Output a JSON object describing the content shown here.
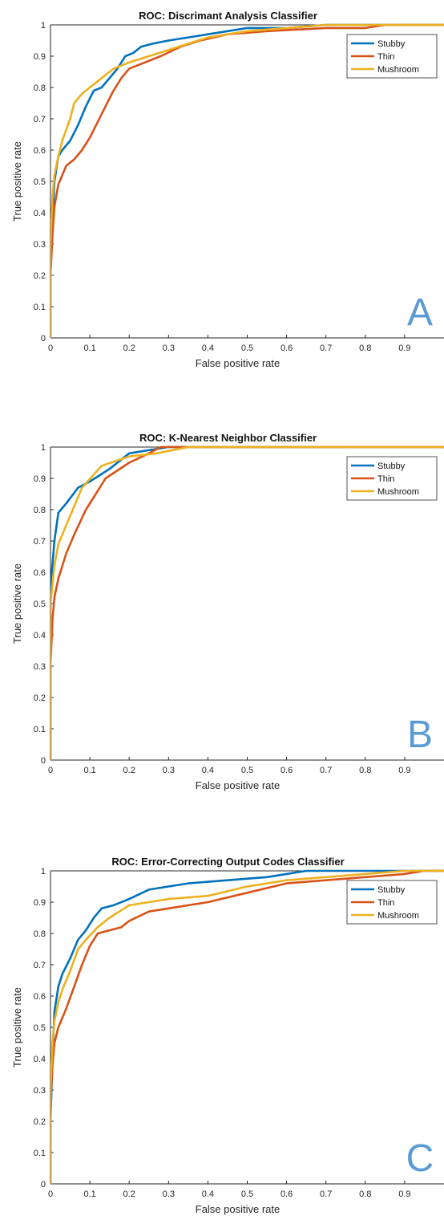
{
  "chart_data": [
    {
      "type": "line",
      "title": "ROC: Discrimant Analysis Classifier",
      "xlabel": "False positive rate",
      "ylabel": "True positive rate",
      "xlim": [
        0,
        1
      ],
      "ylim": [
        0,
        1
      ],
      "xticks": [
        "0",
        "0.1",
        "0.2",
        "0.3",
        "0.4",
        "0.5",
        "0.6",
        "0.7",
        "0.8",
        "0.9"
      ],
      "yticks": [
        "0",
        "0.1",
        "0.2",
        "0.3",
        "0.4",
        "0.5",
        "0.6",
        "0.7",
        "0.8",
        "0.9",
        "1"
      ],
      "legend_position": "top-right",
      "panel_letter": "A",
      "series": [
        {
          "name": "Stubby",
          "color": "#0072BD",
          "points": [
            [
              0,
              0
            ],
            [
              0,
              0.25
            ],
            [
              0.005,
              0.38
            ],
            [
              0.01,
              0.5
            ],
            [
              0.02,
              0.58
            ],
            [
              0.03,
              0.6
            ],
            [
              0.05,
              0.63
            ],
            [
              0.07,
              0.68
            ],
            [
              0.09,
              0.74
            ],
            [
              0.11,
              0.79
            ],
            [
              0.13,
              0.8
            ],
            [
              0.15,
              0.83
            ],
            [
              0.17,
              0.86
            ],
            [
              0.19,
              0.9
            ],
            [
              0.21,
              0.91
            ],
            [
              0.23,
              0.93
            ],
            [
              0.26,
              0.94
            ],
            [
              0.3,
              0.95
            ],
            [
              0.35,
              0.96
            ],
            [
              0.4,
              0.97
            ],
            [
              0.45,
              0.98
            ],
            [
              0.5,
              0.99
            ],
            [
              0.6,
              0.99
            ],
            [
              0.7,
              1
            ],
            [
              1,
              1
            ]
          ]
        },
        {
          "name": "Thin",
          "color": "#D95319",
          "points": [
            [
              0,
              0
            ],
            [
              0,
              0.2
            ],
            [
              0.005,
              0.33
            ],
            [
              0.01,
              0.42
            ],
            [
              0.02,
              0.49
            ],
            [
              0.03,
              0.52
            ],
            [
              0.04,
              0.55
            ],
            [
              0.06,
              0.57
            ],
            [
              0.08,
              0.6
            ],
            [
              0.1,
              0.64
            ],
            [
              0.12,
              0.69
            ],
            [
              0.14,
              0.74
            ],
            [
              0.16,
              0.79
            ],
            [
              0.18,
              0.83
            ],
            [
              0.2,
              0.86
            ],
            [
              0.24,
              0.88
            ],
            [
              0.28,
              0.9
            ],
            [
              0.33,
              0.93
            ],
            [
              0.38,
              0.95
            ],
            [
              0.45,
              0.97
            ],
            [
              0.55,
              0.98
            ],
            [
              0.7,
              0.99
            ],
            [
              0.8,
              0.99
            ],
            [
              0.85,
              1
            ],
            [
              1,
              1
            ]
          ]
        },
        {
          "name": "Mushroom",
          "color": "#EDB120",
          "points": [
            [
              0,
              0
            ],
            [
              0,
              0.3
            ],
            [
              0.005,
              0.45
            ],
            [
              0.01,
              0.52
            ],
            [
              0.02,
              0.58
            ],
            [
              0.03,
              0.63
            ],
            [
              0.05,
              0.7
            ],
            [
              0.06,
              0.75
            ],
            [
              0.08,
              0.78
            ],
            [
              0.1,
              0.8
            ],
            [
              0.13,
              0.83
            ],
            [
              0.16,
              0.86
            ],
            [
              0.2,
              0.88
            ],
            [
              0.25,
              0.9
            ],
            [
              0.3,
              0.92
            ],
            [
              0.35,
              0.94
            ],
            [
              0.4,
              0.96
            ],
            [
              0.45,
              0.97
            ],
            [
              0.5,
              0.98
            ],
            [
              0.6,
              0.99
            ],
            [
              0.7,
              1
            ],
            [
              1,
              1
            ]
          ]
        }
      ]
    },
    {
      "type": "line",
      "title": "ROC: K-Nearest Neighbor Classifier",
      "xlabel": "False positive rate",
      "ylabel": "True positive rate",
      "xlim": [
        0,
        1
      ],
      "ylim": [
        0,
        1
      ],
      "xticks": [
        "0",
        "0.1",
        "0.2",
        "0.3",
        "0.4",
        "0.5",
        "0.6",
        "0.7",
        "0.8",
        "0.9"
      ],
      "yticks": [
        "0",
        "0.1",
        "0.2",
        "0.3",
        "0.4",
        "0.5",
        "0.6",
        "0.7",
        "0.8",
        "0.9",
        "1"
      ],
      "legend_position": "top-right",
      "panel_letter": "B",
      "series": [
        {
          "name": "Stubby",
          "color": "#0072BD",
          "points": [
            [
              0,
              0
            ],
            [
              0,
              0.55
            ],
            [
              0.01,
              0.7
            ],
            [
              0.02,
              0.79
            ],
            [
              0.04,
              0.82
            ],
            [
              0.07,
              0.87
            ],
            [
              0.1,
              0.89
            ],
            [
              0.15,
              0.93
            ],
            [
              0.2,
              0.98
            ],
            [
              0.25,
              0.99
            ],
            [
              0.3,
              1
            ],
            [
              1,
              1
            ]
          ]
        },
        {
          "name": "Thin",
          "color": "#D95319",
          "points": [
            [
              0,
              0
            ],
            [
              0,
              0.3
            ],
            [
              0.005,
              0.45
            ],
            [
              0.01,
              0.52
            ],
            [
              0.02,
              0.58
            ],
            [
              0.04,
              0.66
            ],
            [
              0.06,
              0.72
            ],
            [
              0.09,
              0.8
            ],
            [
              0.14,
              0.9
            ],
            [
              0.2,
              0.95
            ],
            [
              0.25,
              0.98
            ],
            [
              0.28,
              1
            ],
            [
              1,
              1
            ]
          ]
        },
        {
          "name": "Mushroom",
          "color": "#EDB120",
          "points": [
            [
              0,
              0
            ],
            [
              0,
              0.5
            ],
            [
              0.01,
              0.62
            ],
            [
              0.02,
              0.69
            ],
            [
              0.04,
              0.75
            ],
            [
              0.08,
              0.87
            ],
            [
              0.13,
              0.94
            ],
            [
              0.2,
              0.97
            ],
            [
              0.27,
              0.98
            ],
            [
              0.35,
              1
            ],
            [
              1,
              1
            ]
          ]
        }
      ]
    },
    {
      "type": "line",
      "title": "ROC: Error-Correcting Output Codes Classifier",
      "xlabel": "False positive rate",
      "ylabel": "True positive rate",
      "xlim": [
        0,
        1
      ],
      "ylim": [
        0,
        1
      ],
      "xticks": [
        "0",
        "0.1",
        "0.2",
        "0.3",
        "0.4",
        "0.5",
        "0.6",
        "0.7",
        "0.8",
        "0.9"
      ],
      "yticks": [
        "0",
        "0.1",
        "0.2",
        "0.3",
        "0.4",
        "0.5",
        "0.6",
        "0.7",
        "0.8",
        "0.9",
        "1"
      ],
      "legend_position": "top-right",
      "panel_letter": "C",
      "series": [
        {
          "name": "Stubby",
          "color": "#0072BD",
          "points": [
            [
              0,
              0
            ],
            [
              0,
              0.2
            ],
            [
              0.005,
              0.4
            ],
            [
              0.01,
              0.55
            ],
            [
              0.02,
              0.63
            ],
            [
              0.03,
              0.67
            ],
            [
              0.05,
              0.72
            ],
            [
              0.07,
              0.78
            ],
            [
              0.09,
              0.81
            ],
            [
              0.11,
              0.85
            ],
            [
              0.13,
              0.88
            ],
            [
              0.16,
              0.89
            ],
            [
              0.2,
              0.91
            ],
            [
              0.25,
              0.94
            ],
            [
              0.3,
              0.95
            ],
            [
              0.35,
              0.96
            ],
            [
              0.45,
              0.97
            ],
            [
              0.55,
              0.98
            ],
            [
              0.65,
              1
            ],
            [
              1,
              1
            ]
          ]
        },
        {
          "name": "Thin",
          "color": "#D95319",
          "points": [
            [
              0,
              0
            ],
            [
              0,
              0.25
            ],
            [
              0.005,
              0.38
            ],
            [
              0.01,
              0.45
            ],
            [
              0.02,
              0.5
            ],
            [
              0.04,
              0.56
            ],
            [
              0.06,
              0.63
            ],
            [
              0.08,
              0.7
            ],
            [
              0.1,
              0.76
            ],
            [
              0.12,
              0.8
            ],
            [
              0.15,
              0.81
            ],
            [
              0.18,
              0.82
            ],
            [
              0.2,
              0.84
            ],
            [
              0.25,
              0.87
            ],
            [
              0.3,
              0.88
            ],
            [
              0.35,
              0.89
            ],
            [
              0.4,
              0.9
            ],
            [
              0.5,
              0.93
            ],
            [
              0.6,
              0.96
            ],
            [
              0.7,
              0.97
            ],
            [
              0.8,
              0.98
            ],
            [
              0.9,
              0.99
            ],
            [
              0.95,
              1
            ],
            [
              1,
              1
            ]
          ]
        },
        {
          "name": "Mushroom",
          "color": "#EDB120",
          "points": [
            [
              0,
              0
            ],
            [
              0,
              0.3
            ],
            [
              0.005,
              0.45
            ],
            [
              0.01,
              0.52
            ],
            [
              0.02,
              0.58
            ],
            [
              0.03,
              0.62
            ],
            [
              0.05,
              0.68
            ],
            [
              0.07,
              0.75
            ],
            [
              0.09,
              0.78
            ],
            [
              0.12,
              0.82
            ],
            [
              0.15,
              0.85
            ],
            [
              0.2,
              0.89
            ],
            [
              0.25,
              0.9
            ],
            [
              0.3,
              0.91
            ],
            [
              0.4,
              0.92
            ],
            [
              0.5,
              0.95
            ],
            [
              0.6,
              0.97
            ],
            [
              0.7,
              0.98
            ],
            [
              0.8,
              0.99
            ],
            [
              0.9,
              1
            ],
            [
              1,
              1
            ]
          ]
        }
      ]
    }
  ]
}
